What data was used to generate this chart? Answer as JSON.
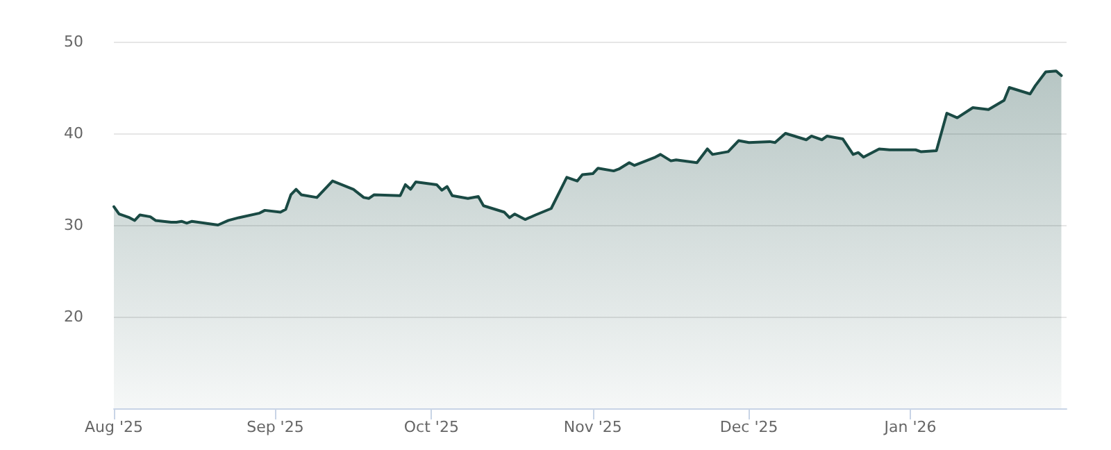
{
  "chart_data": {
    "type": "area",
    "x": [
      "2025-08-01",
      "2025-08-02",
      "2025-08-04",
      "2025-08-05",
      "2025-08-06",
      "2025-08-08",
      "2025-08-09",
      "2025-08-12",
      "2025-08-13",
      "2025-08-14",
      "2025-08-15",
      "2025-08-16",
      "2025-08-21",
      "2025-08-23",
      "2025-08-25",
      "2025-08-29",
      "2025-08-30",
      "2025-09-02",
      "2025-09-03",
      "2025-09-04",
      "2025-09-05",
      "2025-09-06",
      "2025-09-09",
      "2025-09-12",
      "2025-09-16",
      "2025-09-18",
      "2025-09-19",
      "2025-09-20",
      "2025-09-25",
      "2025-09-26",
      "2025-09-27",
      "2025-09-28",
      "2025-10-02",
      "2025-10-03",
      "2025-10-04",
      "2025-10-05",
      "2025-10-08",
      "2025-10-10",
      "2025-10-11",
      "2025-10-15",
      "2025-10-16",
      "2025-10-17",
      "2025-10-19",
      "2025-10-21",
      "2025-10-24",
      "2025-10-27",
      "2025-10-29",
      "2025-10-30",
      "2025-11-01",
      "2025-11-02",
      "2025-11-05",
      "2025-11-06",
      "2025-11-08",
      "2025-11-09",
      "2025-11-13",
      "2025-11-14",
      "2025-11-16",
      "2025-11-17",
      "2025-11-21",
      "2025-11-23",
      "2025-11-24",
      "2025-11-27",
      "2025-11-29",
      "2025-12-01",
      "2025-12-05",
      "2025-12-06",
      "2025-12-08",
      "2025-12-12",
      "2025-12-13",
      "2025-12-15",
      "2025-12-16",
      "2025-12-19",
      "2025-12-21",
      "2025-12-22",
      "2025-12-23",
      "2025-12-26",
      "2025-12-28",
      "2026-01-02",
      "2026-01-03",
      "2026-01-06",
      "2026-01-08",
      "2026-01-10",
      "2026-01-13",
      "2026-01-16",
      "2026-01-19",
      "2026-01-20",
      "2026-01-24",
      "2026-01-25",
      "2026-01-27",
      "2026-01-29",
      "2026-01-30"
    ],
    "series": [
      {
        "color": "#1a4a44",
        "values": [
          32.0,
          31.2,
          30.8,
          30.5,
          31.1,
          30.9,
          30.5,
          30.3,
          30.3,
          30.4,
          30.2,
          30.4,
          30.0,
          30.5,
          30.8,
          31.3,
          31.6,
          31.4,
          31.7,
          33.3,
          33.9,
          33.3,
          33.0,
          34.8,
          33.9,
          33.0,
          32.9,
          33.3,
          33.2,
          34.4,
          33.9,
          34.7,
          34.4,
          33.8,
          34.2,
          33.2,
          32.9,
          33.1,
          32.1,
          31.4,
          30.8,
          31.2,
          30.6,
          31.1,
          31.8,
          35.2,
          34.8,
          35.5,
          35.6,
          36.2,
          35.9,
          36.1,
          36.8,
          36.5,
          37.4,
          37.7,
          37.0,
          37.1,
          36.8,
          38.3,
          37.7,
          38.0,
          39.2,
          39.0,
          39.1,
          39.0,
          40.0,
          39.3,
          39.7,
          39.3,
          39.7,
          39.4,
          37.7,
          37.9,
          37.4,
          38.3,
          38.2,
          38.2,
          38.0,
          38.1,
          42.2,
          41.7,
          42.8,
          42.6,
          43.6,
          45.0,
          44.3,
          45.2,
          46.7,
          46.8,
          46.3
        ]
      }
    ],
    "xlim": [
      "2025-08-01",
      "2026-01-31"
    ],
    "xticks": [
      {
        "value": "2025-08-01",
        "label": "Aug '25"
      },
      {
        "value": "2025-09-01",
        "label": "Sep '25"
      },
      {
        "value": "2025-10-01",
        "label": "Oct '25"
      },
      {
        "value": "2025-11-01",
        "label": "Nov '25"
      },
      {
        "value": "2025-12-01",
        "label": "Dec '25"
      },
      {
        "value": "2026-01-01",
        "label": "Jan '26"
      }
    ],
    "ylim": [
      10,
      50
    ],
    "yticks": [
      20,
      30,
      40,
      50
    ],
    "grid": "y"
  }
}
